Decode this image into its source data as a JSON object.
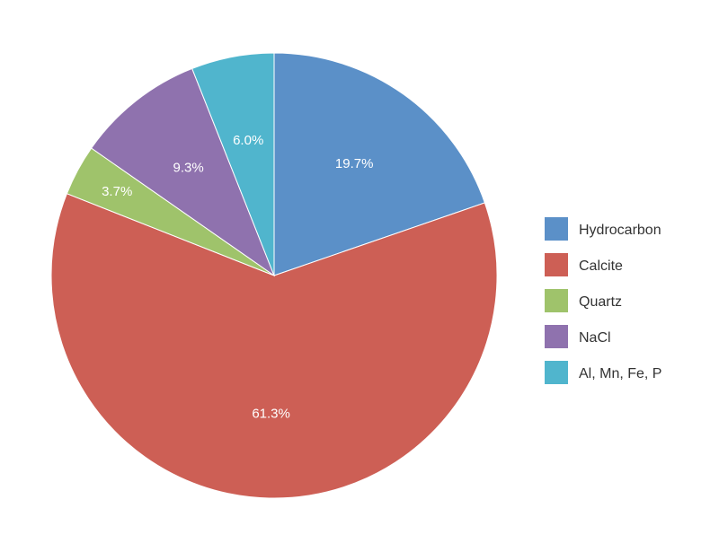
{
  "chart_data": {
    "type": "pie",
    "start_angle_deg": 0,
    "direction": "clockwise",
    "legend_position": "right",
    "slices": [
      {
        "label": "Hydrocarbon",
        "value": 19.7,
        "display": "19.7%",
        "color": "#5b90c8"
      },
      {
        "label": "Calcite",
        "value": 61.3,
        "display": "61.3%",
        "color": "#cd5f55"
      },
      {
        "label": "Quartz",
        "value": 3.7,
        "display": "3.7%",
        "color": "#9fc36b"
      },
      {
        "label": "NaCl",
        "value": 9.3,
        "display": "9.3%",
        "color": "#8f72ae"
      },
      {
        "label": "Al, Mn, Fe, P",
        "value": 6.0,
        "display": "6.0%",
        "color": "#50b5cd"
      }
    ]
  }
}
